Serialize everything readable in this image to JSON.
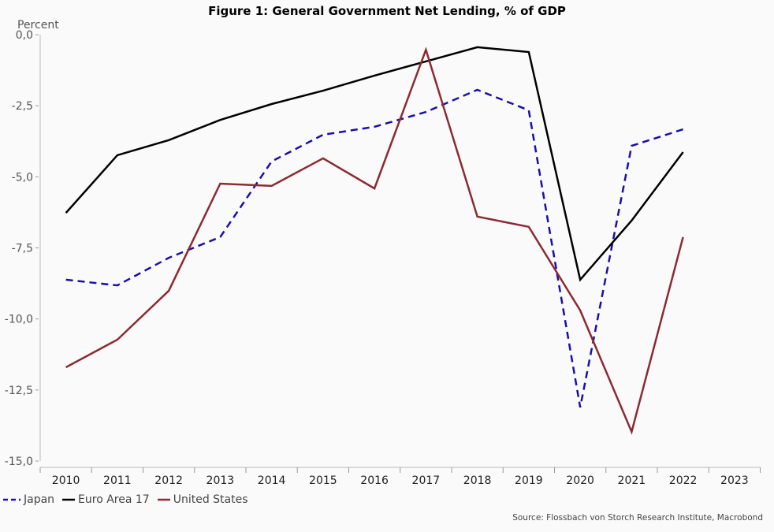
{
  "chart_data": {
    "type": "line",
    "title": "Figure 1: General Government Net Lending, % of GDP",
    "ylabel": "Percent",
    "xlabel": "",
    "ylim": [
      -15,
      0
    ],
    "yticks": [
      "0,0",
      "-2,5",
      "-5,0",
      "-7,5",
      "-10,0",
      "-12,5",
      "-15,0"
    ],
    "ytick_values": [
      0,
      -2.5,
      -5,
      -7.5,
      -10,
      -12.5,
      -15
    ],
    "categories": [
      "2010",
      "2011",
      "2012",
      "2013",
      "2014",
      "2015",
      "2016",
      "2017",
      "2018",
      "2019",
      "2020",
      "2021",
      "2022",
      "2023"
    ],
    "grid": false,
    "legend_position": "bottom-left",
    "series": [
      {
        "name": "Japan",
        "color": "#1a0fa8",
        "dash": true,
        "values": [
          -8.62,
          -8.82,
          -7.85,
          -7.12,
          -4.46,
          -3.52,
          -3.24,
          -2.72,
          -1.94,
          -2.66,
          -13.11,
          -3.91,
          -3.33,
          null
        ]
      },
      {
        "name": "Euro Area 17",
        "color": "#000000",
        "dash": false,
        "values": [
          -6.27,
          -4.24,
          -3.71,
          -3.0,
          -2.44,
          -1.97,
          -1.44,
          -0.94,
          -0.44,
          -0.61,
          -8.62,
          -6.54,
          -4.13,
          null
        ]
      },
      {
        "name": "United States",
        "color": "#8b2a32",
        "dash": false,
        "values": [
          -11.7,
          -10.73,
          -9.01,
          -5.24,
          -5.32,
          -4.35,
          -5.41,
          -0.53,
          -6.4,
          -6.76,
          -9.7,
          -13.97,
          -7.12,
          null
        ]
      }
    ],
    "source": "Source: Flossbach von Storch Research Institute, Macrobond"
  }
}
